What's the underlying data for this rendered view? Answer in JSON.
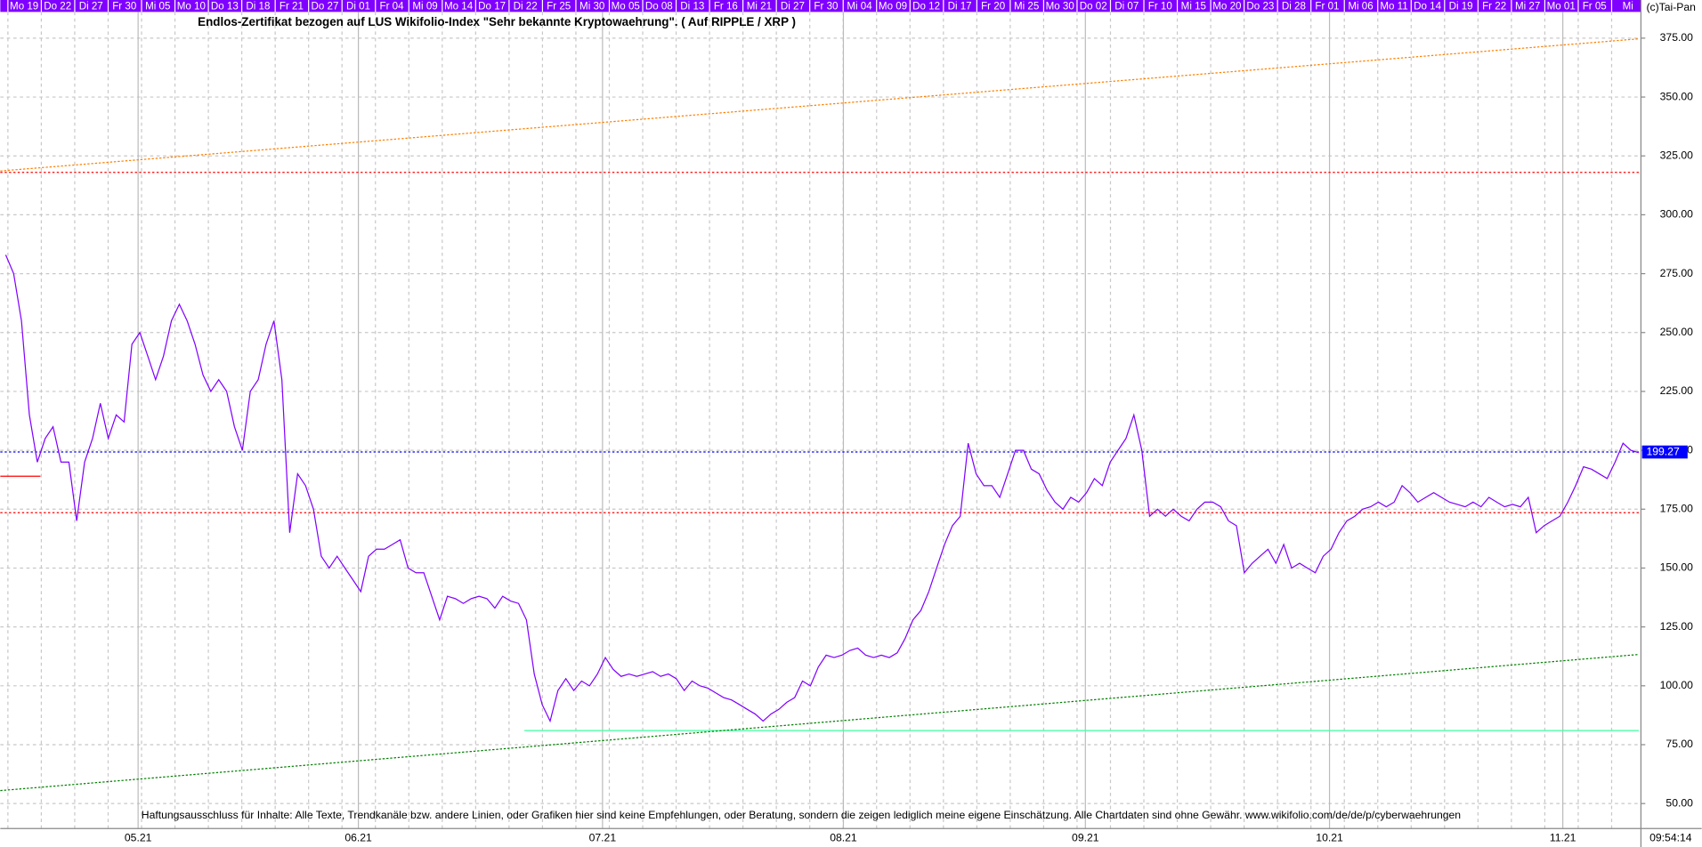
{
  "chart_data": {
    "type": "line",
    "title": "Endlos-Zertifikat bezogen auf LUS Wikifolio-Index \"Sehr bekannte Kryptowaehrung\". ( Auf RIPPLE / XRP )",
    "copyright": "(c)Tai-Pan",
    "disclaimer": "Haftungsausschluss für Inhalte: Alle Texte, Trendkanäle bzw. andere Linien, oder Grafiken hier sind keine Empfehlungen, oder Beratung, sondern die zeigen lediglich meine eigene Einschätzung. Alle Chartdaten sind ohne Gewähr.  www.wikifolio.com/de/de/p/cyberwaehrungen",
    "day_labels": [
      "Mo 19",
      "Do 22",
      "Di 27",
      "Fr 30",
      "Mi 05",
      "Mo 10",
      "Do 13",
      "Di 18",
      "Fr 21",
      "Do 27",
      "Di 01",
      "Fr 04",
      "Mi 09",
      "Mo 14",
      "Do 17",
      "Di 22",
      "Fr 25",
      "Mi 30",
      "Mo 05",
      "Do 08",
      "Di 13",
      "Fr 16",
      "Mi 21",
      "Di 27",
      "Fr 30",
      "Mi 04",
      "Mo 09",
      "Do 12",
      "Di 17",
      "Fr 20",
      "Mi 25",
      "Mo 30",
      "Do 02",
      "Di 07",
      "Fr 10",
      "Mi 15",
      "Mo 20",
      "Do 23",
      "Di 28",
      "Fr 01",
      "Mi 06",
      "Mo 11",
      "Do 14",
      "Di 19",
      "Fr 22",
      "Mi 27",
      "Mo 01",
      "Fr 05",
      "Mi"
    ],
    "month_labels": [
      "05.21",
      "06.21",
      "07.21",
      "08.21",
      "09.21",
      "10.21",
      "11.21"
    ],
    "time_label": "09:54:14",
    "ylim": [
      40.3,
      391.2
    ],
    "yticks": [
      {
        "value": 50,
        "label": "50.00"
      },
      {
        "value": 75,
        "label": "75.00"
      },
      {
        "value": 100,
        "label": "100.00"
      },
      {
        "value": 125,
        "label": "125.00"
      },
      {
        "value": 150,
        "label": "150.00"
      },
      {
        "value": 175,
        "label": "175.00"
      },
      {
        "value": 200,
        "label": "200.00"
      },
      {
        "value": 225,
        "label": "225.00"
      },
      {
        "value": 250,
        "label": "250.00"
      },
      {
        "value": 275,
        "label": "275.00"
      },
      {
        "value": 300,
        "label": "300.00"
      },
      {
        "value": 325,
        "label": "325.00"
      },
      {
        "value": 350,
        "label": "350.00"
      },
      {
        "value": 375,
        "label": "375.00"
      }
    ],
    "grid": true,
    "series": [
      {
        "color": "#8000ff",
        "values": [
          283,
          275,
          255,
          215,
          195,
          205,
          210,
          195,
          195,
          170,
          195,
          205,
          220,
          205,
          215,
          212,
          245,
          250,
          240,
          230,
          240,
          255,
          262,
          255,
          245,
          232,
          225,
          230,
          225,
          210,
          200,
          225,
          230,
          245,
          255,
          230,
          165,
          190,
          185,
          175,
          155,
          150,
          155,
          150,
          145,
          140,
          155,
          158,
          158,
          160,
          162,
          150,
          148,
          148,
          138,
          128,
          138,
          137,
          135,
          137,
          138,
          137,
          133,
          138,
          136,
          135,
          128,
          105,
          92,
          85,
          98,
          103,
          98,
          102,
          100,
          105,
          112,
          107,
          104,
          105,
          104,
          105,
          106,
          104,
          105,
          103,
          98,
          102,
          100,
          99,
          97,
          95,
          94,
          92,
          90,
          88,
          85,
          88,
          90,
          93,
          95,
          102,
          100,
          108,
          113,
          112,
          113,
          115,
          116,
          113,
          112,
          113,
          112,
          114,
          120,
          128,
          132,
          140,
          150,
          160,
          168,
          172,
          203,
          190,
          185,
          185,
          180,
          190,
          200,
          200,
          192,
          190,
          183,
          178,
          175,
          180,
          178,
          182,
          188,
          185,
          195,
          200,
          205,
          215,
          200,
          172,
          175,
          172,
          175,
          172,
          170,
          175,
          178,
          178,
          176,
          170,
          168,
          148,
          152,
          155,
          158,
          152,
          160,
          150,
          152,
          150,
          148,
          155,
          158,
          165,
          170,
          172,
          175,
          176,
          178,
          176,
          178,
          185,
          182,
          178,
          180,
          182,
          180,
          178,
          177,
          176,
          178,
          176,
          180,
          178,
          176,
          177,
          176,
          180,
          165,
          168,
          170,
          172,
          178,
          185,
          193,
          192,
          190,
          188,
          195,
          203,
          200,
          199
        ]
      }
    ],
    "last_value": 199.27,
    "hlines": [
      {
        "value": 199.27,
        "color": "#0000ff"
      },
      {
        "value": 318,
        "color": "#ff0000"
      },
      {
        "value": 173.5,
        "color": "#ff0000"
      },
      {
        "value": 189,
        "color": "#ff0000"
      },
      {
        "value": 81,
        "color": "#40ffa0"
      }
    ],
    "trendlines": [
      {
        "values": [
          318.6,
          374.7
        ],
        "color": "#ff8000"
      },
      {
        "values": [
          55.5,
          113.3
        ],
        "color": "#008000"
      }
    ]
  }
}
